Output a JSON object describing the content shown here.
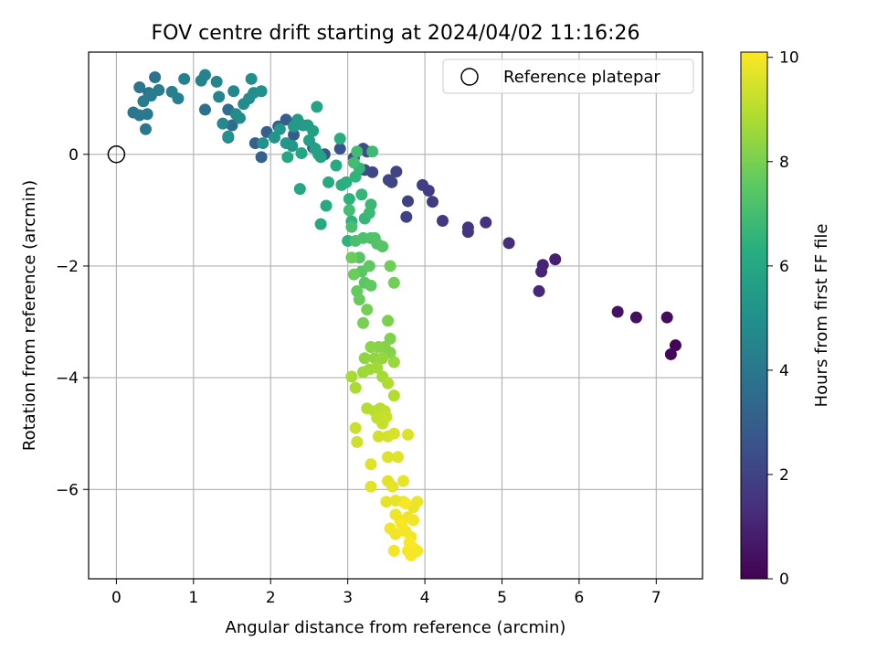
{
  "chart_data": {
    "type": "scatter",
    "title": "FOV centre drift starting at 2024/04/02 11:16:26",
    "xlabel": "Angular distance from reference (arcmin)",
    "ylabel": "Rotation from reference (arcmin)",
    "xlim": [
      -0.36,
      7.6
    ],
    "ylim": [
      -7.6,
      1.83
    ],
    "xticks": [
      0,
      1,
      2,
      3,
      4,
      5,
      6,
      7
    ],
    "yticks": [
      0,
      -2,
      -4,
      -6
    ],
    "grid": true,
    "legend": {
      "placement": "top-right",
      "entries": [
        {
          "label": "Reference platepar",
          "marker": "open-circle"
        }
      ]
    },
    "reference_point": {
      "x": 0,
      "y": 0
    },
    "colorbar": {
      "label": "Hours from first FF file",
      "min": 0,
      "max": 10.1,
      "ticks": [
        0,
        2,
        4,
        6,
        8,
        10
      ],
      "colormap": "viridis"
    },
    "points": [
      {
        "x": 7.25,
        "y": -3.42,
        "t": 0.1
      },
      {
        "x": 7.19,
        "y": -3.58,
        "t": 0.2
      },
      {
        "x": 7.14,
        "y": -2.92,
        "t": 0.3
      },
      {
        "x": 6.74,
        "y": -2.92,
        "t": 0.4
      },
      {
        "x": 6.5,
        "y": -2.82,
        "t": 0.5
      },
      {
        "x": 5.69,
        "y": -1.88,
        "t": 0.9
      },
      {
        "x": 5.53,
        "y": -1.98,
        "t": 1.0
      },
      {
        "x": 5.51,
        "y": -2.1,
        "t": 1.05
      },
      {
        "x": 5.48,
        "y": -2.45,
        "t": 1.1
      },
      {
        "x": 5.09,
        "y": -1.59,
        "t": 1.3
      },
      {
        "x": 4.79,
        "y": -1.22,
        "t": 1.4
      },
      {
        "x": 4.56,
        "y": -1.31,
        "t": 1.5
      },
      {
        "x": 4.56,
        "y": -1.39,
        "t": 1.55
      },
      {
        "x": 4.23,
        "y": -1.19,
        "t": 1.65
      },
      {
        "x": 4.1,
        "y": -0.85,
        "t": 1.75
      },
      {
        "x": 4.05,
        "y": -0.65,
        "t": 1.8
      },
      {
        "x": 3.97,
        "y": -0.55,
        "t": 1.85
      },
      {
        "x": 3.78,
        "y": -0.84,
        "t": 1.9
      },
      {
        "x": 3.76,
        "y": -1.12,
        "t": 1.95
      },
      {
        "x": 3.63,
        "y": -0.31,
        "t": 2.0
      },
      {
        "x": 3.57,
        "y": -0.5,
        "t": 2.05
      },
      {
        "x": 3.53,
        "y": -0.46,
        "t": 2.1
      },
      {
        "x": 3.32,
        "y": -0.32,
        "t": 2.2
      },
      {
        "x": 3.22,
        "y": -0.28,
        "t": 2.3
      },
      {
        "x": 3.25,
        "y": 0.05,
        "t": 2.35
      },
      {
        "x": 3.2,
        "y": 0.1,
        "t": 2.4
      },
      {
        "x": 3.08,
        "y": -0.06,
        "t": 2.5
      },
      {
        "x": 2.9,
        "y": 0.1,
        "t": 2.6
      },
      {
        "x": 2.7,
        "y": 0.0,
        "t": 2.7
      },
      {
        "x": 2.55,
        "y": 0.12,
        "t": 2.8
      },
      {
        "x": 2.3,
        "y": 0.35,
        "t": 2.9
      },
      {
        "x": 2.2,
        "y": 0.62,
        "t": 3.0
      },
      {
        "x": 2.1,
        "y": 0.5,
        "t": 3.05
      },
      {
        "x": 1.95,
        "y": 0.4,
        "t": 3.1
      },
      {
        "x": 1.88,
        "y": -0.05,
        "t": 3.15
      },
      {
        "x": 1.8,
        "y": 0.2,
        "t": 3.2
      },
      {
        "x": 1.45,
        "y": 0.3,
        "t": 3.4
      },
      {
        "x": 1.5,
        "y": 0.52,
        "t": 3.5
      },
      {
        "x": 1.45,
        "y": 0.8,
        "t": 3.6
      },
      {
        "x": 1.15,
        "y": 0.8,
        "t": 3.7
      },
      {
        "x": 0.42,
        "y": 1.1,
        "t": 3.8
      },
      {
        "x": 0.5,
        "y": 1.38,
        "t": 3.85
      },
      {
        "x": 0.3,
        "y": 1.2,
        "t": 3.9
      },
      {
        "x": 0.22,
        "y": 0.75,
        "t": 3.95
      },
      {
        "x": 0.3,
        "y": 0.7,
        "t": 4.0
      },
      {
        "x": 0.38,
        "y": 0.45,
        "t": 4.05
      },
      {
        "x": 0.4,
        "y": 0.72,
        "t": 4.1
      },
      {
        "x": 0.35,
        "y": 0.95,
        "t": 4.15
      },
      {
        "x": 0.45,
        "y": 1.05,
        "t": 4.2
      },
      {
        "x": 0.55,
        "y": 1.15,
        "t": 4.25
      },
      {
        "x": 0.72,
        "y": 1.12,
        "t": 4.3
      },
      {
        "x": 0.8,
        "y": 1.0,
        "t": 4.35
      },
      {
        "x": 0.88,
        "y": 1.35,
        "t": 4.4
      },
      {
        "x": 1.1,
        "y": 1.32,
        "t": 4.45
      },
      {
        "x": 1.15,
        "y": 1.42,
        "t": 4.5
      },
      {
        "x": 1.3,
        "y": 1.3,
        "t": 4.55
      },
      {
        "x": 1.33,
        "y": 1.03,
        "t": 4.6
      },
      {
        "x": 1.52,
        "y": 1.13,
        "t": 4.65
      },
      {
        "x": 1.38,
        "y": 0.55,
        "t": 4.7
      },
      {
        "x": 1.55,
        "y": 0.72,
        "t": 4.75
      },
      {
        "x": 1.6,
        "y": 0.65,
        "t": 4.8
      },
      {
        "x": 1.65,
        "y": 0.9,
        "t": 4.85
      },
      {
        "x": 1.72,
        "y": 1.0,
        "t": 4.9
      },
      {
        "x": 1.75,
        "y": 1.35,
        "t": 4.95
      },
      {
        "x": 1.78,
        "y": 1.1,
        "t": 5.0
      },
      {
        "x": 1.88,
        "y": 1.13,
        "t": 5.05
      },
      {
        "x": 1.45,
        "y": 0.32,
        "t": 5.1
      },
      {
        "x": 1.9,
        "y": 0.2,
        "t": 5.15
      },
      {
        "x": 2.05,
        "y": 0.3,
        "t": 5.2
      },
      {
        "x": 2.12,
        "y": 0.45,
        "t": 5.25
      },
      {
        "x": 2.2,
        "y": 0.2,
        "t": 5.3
      },
      {
        "x": 2.28,
        "y": 0.15,
        "t": 5.35
      },
      {
        "x": 2.3,
        "y": 0.5,
        "t": 5.4
      },
      {
        "x": 2.35,
        "y": 0.62,
        "t": 5.45
      },
      {
        "x": 2.42,
        "y": 0.52,
        "t": 5.5
      },
      {
        "x": 2.48,
        "y": 0.52,
        "t": 5.55
      },
      {
        "x": 2.5,
        "y": 0.25,
        "t": 5.6
      },
      {
        "x": 2.55,
        "y": 0.42,
        "t": 5.65
      },
      {
        "x": 2.58,
        "y": 0.1,
        "t": 5.7
      },
      {
        "x": 2.62,
        "y": 0.0,
        "t": 5.75
      },
      {
        "x": 2.65,
        "y": -0.05,
        "t": 5.8
      },
      {
        "x": 2.6,
        "y": 0.85,
        "t": 5.85
      },
      {
        "x": 2.4,
        "y": 0.02,
        "t": 5.9
      },
      {
        "x": 2.22,
        "y": -0.05,
        "t": 5.95
      },
      {
        "x": 2.38,
        "y": -0.62,
        "t": 6.0
      },
      {
        "x": 2.65,
        "y": -1.25,
        "t": 6.05
      },
      {
        "x": 2.72,
        "y": -0.92,
        "t": 6.1
      },
      {
        "x": 2.75,
        "y": -0.5,
        "t": 6.15
      },
      {
        "x": 2.85,
        "y": -0.2,
        "t": 6.2
      },
      {
        "x": 2.9,
        "y": 0.28,
        "t": 6.25
      },
      {
        "x": 2.92,
        "y": -0.55,
        "t": 6.3
      },
      {
        "x": 2.98,
        "y": -0.5,
        "t": 6.35
      },
      {
        "x": 3.02,
        "y": -0.8,
        "t": 6.4
      },
      {
        "x": 3.05,
        "y": -1.2,
        "t": 6.45
      },
      {
        "x": 3.0,
        "y": -1.55,
        "t": 6.5
      },
      {
        "x": 3.1,
        "y": -0.4,
        "t": 6.55
      },
      {
        "x": 3.15,
        "y": -0.25,
        "t": 6.6
      },
      {
        "x": 3.18,
        "y": -0.72,
        "t": 6.65
      },
      {
        "x": 3.22,
        "y": -1.15,
        "t": 6.7
      },
      {
        "x": 3.28,
        "y": -1.05,
        "t": 6.75
      },
      {
        "x": 3.3,
        "y": -0.9,
        "t": 6.8
      },
      {
        "x": 3.32,
        "y": 0.05,
        "t": 6.85
      },
      {
        "x": 3.12,
        "y": 0.05,
        "t": 6.9
      },
      {
        "x": 3.08,
        "y": -0.15,
        "t": 6.95
      },
      {
        "x": 3.02,
        "y": -1.0,
        "t": 7.0
      },
      {
        "x": 3.05,
        "y": -1.3,
        "t": 7.05
      },
      {
        "x": 3.1,
        "y": -1.55,
        "t": 7.1
      },
      {
        "x": 3.2,
        "y": -1.5,
        "t": 7.15
      },
      {
        "x": 3.3,
        "y": -1.5,
        "t": 7.2
      },
      {
        "x": 3.35,
        "y": -1.5,
        "t": 7.25
      },
      {
        "x": 3.38,
        "y": -1.6,
        "t": 7.3
      },
      {
        "x": 3.45,
        "y": -1.65,
        "t": 7.35
      },
      {
        "x": 3.15,
        "y": -1.85,
        "t": 7.4
      },
      {
        "x": 3.18,
        "y": -2.1,
        "t": 7.45
      },
      {
        "x": 3.22,
        "y": -2.3,
        "t": 7.5
      },
      {
        "x": 3.28,
        "y": -2.0,
        "t": 7.55
      },
      {
        "x": 3.3,
        "y": -2.35,
        "t": 7.6
      },
      {
        "x": 3.12,
        "y": -2.45,
        "t": 7.65
      },
      {
        "x": 3.15,
        "y": -2.6,
        "t": 7.7
      },
      {
        "x": 3.08,
        "y": -2.15,
        "t": 7.75
      },
      {
        "x": 3.05,
        "y": -1.85,
        "t": 7.8
      },
      {
        "x": 3.55,
        "y": -2.0,
        "t": 7.85
      },
      {
        "x": 3.6,
        "y": -2.3,
        "t": 7.9
      },
      {
        "x": 3.25,
        "y": -2.78,
        "t": 7.95
      },
      {
        "x": 3.2,
        "y": -3.02,
        "t": 8.0
      },
      {
        "x": 3.52,
        "y": -2.98,
        "t": 8.05
      },
      {
        "x": 3.55,
        "y": -3.3,
        "t": 8.1
      },
      {
        "x": 3.55,
        "y": -3.55,
        "t": 8.15
      },
      {
        "x": 3.48,
        "y": -3.45,
        "t": 8.2
      },
      {
        "x": 3.4,
        "y": -3.45,
        "t": 8.25
      },
      {
        "x": 3.3,
        "y": -3.45,
        "t": 8.3
      },
      {
        "x": 3.22,
        "y": -3.65,
        "t": 8.35
      },
      {
        "x": 3.35,
        "y": -3.65,
        "t": 8.4
      },
      {
        "x": 3.45,
        "y": -3.65,
        "t": 8.45
      },
      {
        "x": 3.6,
        "y": -3.72,
        "t": 8.5
      },
      {
        "x": 3.2,
        "y": -3.9,
        "t": 8.55
      },
      {
        "x": 3.28,
        "y": -3.85,
        "t": 8.6
      },
      {
        "x": 3.38,
        "y": -3.82,
        "t": 8.65
      },
      {
        "x": 3.45,
        "y": -3.98,
        "t": 8.7
      },
      {
        "x": 3.05,
        "y": -3.98,
        "t": 8.75
      },
      {
        "x": 3.1,
        "y": -4.18,
        "t": 8.8
      },
      {
        "x": 3.52,
        "y": -4.1,
        "t": 8.85
      },
      {
        "x": 3.6,
        "y": -4.32,
        "t": 8.9
      },
      {
        "x": 3.25,
        "y": -4.55,
        "t": 8.95
      },
      {
        "x": 3.35,
        "y": -4.6,
        "t": 9.0
      },
      {
        "x": 3.42,
        "y": -4.55,
        "t": 9.05
      },
      {
        "x": 3.48,
        "y": -4.6,
        "t": 9.1
      },
      {
        "x": 3.38,
        "y": -4.72,
        "t": 9.15
      },
      {
        "x": 3.45,
        "y": -4.82,
        "t": 9.2
      },
      {
        "x": 3.5,
        "y": -4.7,
        "t": 9.25
      },
      {
        "x": 3.1,
        "y": -4.9,
        "t": 9.3
      },
      {
        "x": 3.12,
        "y": -5.15,
        "t": 9.35
      },
      {
        "x": 3.4,
        "y": -5.05,
        "t": 9.4
      },
      {
        "x": 3.52,
        "y": -5.05,
        "t": 9.45
      },
      {
        "x": 3.6,
        "y": -5.0,
        "t": 9.5
      },
      {
        "x": 3.78,
        "y": -5.02,
        "t": 9.55
      },
      {
        "x": 3.52,
        "y": -5.42,
        "t": 9.6
      },
      {
        "x": 3.65,
        "y": -5.42,
        "t": 9.62
      },
      {
        "x": 3.3,
        "y": -5.55,
        "t": 9.64
      },
      {
        "x": 3.3,
        "y": -5.95,
        "t": 9.66
      },
      {
        "x": 3.52,
        "y": -5.85,
        "t": 9.68
      },
      {
        "x": 3.58,
        "y": -5.95,
        "t": 9.7
      },
      {
        "x": 3.72,
        "y": -5.85,
        "t": 9.72
      },
      {
        "x": 3.5,
        "y": -6.22,
        "t": 9.74
      },
      {
        "x": 3.62,
        "y": -6.2,
        "t": 9.76
      },
      {
        "x": 3.72,
        "y": -6.22,
        "t": 9.78
      },
      {
        "x": 3.85,
        "y": -6.32,
        "t": 9.8
      },
      {
        "x": 3.9,
        "y": -6.22,
        "t": 9.82
      },
      {
        "x": 3.62,
        "y": -6.45,
        "t": 9.84
      },
      {
        "x": 3.68,
        "y": -6.55,
        "t": 9.86
      },
      {
        "x": 3.78,
        "y": -6.5,
        "t": 9.88
      },
      {
        "x": 3.85,
        "y": -6.55,
        "t": 9.9
      },
      {
        "x": 3.55,
        "y": -6.7,
        "t": 9.91
      },
      {
        "x": 3.62,
        "y": -6.8,
        "t": 9.92
      },
      {
        "x": 3.75,
        "y": -6.75,
        "t": 9.93
      },
      {
        "x": 3.82,
        "y": -6.85,
        "t": 9.94
      },
      {
        "x": 3.6,
        "y": -7.1,
        "t": 9.95
      },
      {
        "x": 3.78,
        "y": -7.1,
        "t": 9.96
      },
      {
        "x": 3.85,
        "y": -7.05,
        "t": 9.97
      },
      {
        "x": 3.9,
        "y": -7.1,
        "t": 9.98
      },
      {
        "x": 3.82,
        "y": -7.18,
        "t": 9.99
      },
      {
        "x": 3.75,
        "y": -6.25,
        "t": 10.0
      },
      {
        "x": 3.7,
        "y": -6.62,
        "t": 10.02
      },
      {
        "x": 3.8,
        "y": -6.95,
        "t": 10.05
      }
    ]
  }
}
